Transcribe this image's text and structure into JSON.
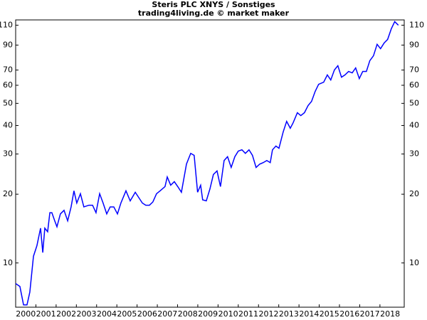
{
  "chart_data": {
    "type": "line",
    "title": "Steris PLC XNYS / Sonstiges",
    "subtitle": "trading4living.de © market maker",
    "x": [
      2000.0,
      2000.21,
      2000.39,
      2000.56,
      2000.7,
      2000.88,
      2001.05,
      2001.23,
      2001.34,
      2001.44,
      2001.58,
      2001.69,
      2001.79,
      2001.93,
      2002.04,
      2002.21,
      2002.39,
      2002.57,
      2002.74,
      2002.88,
      2003.02,
      2003.2,
      2003.37,
      2003.62,
      2003.8,
      2003.97,
      2004.15,
      2004.32,
      2004.5,
      2004.67,
      2004.85,
      2005.03,
      2005.2,
      2005.45,
      2005.66,
      2005.91,
      2006.26,
      2006.43,
      2006.61,
      2006.78,
      2006.96,
      2007.14,
      2007.38,
      2007.49,
      2007.66,
      2007.84,
      2008.01,
      2008.19,
      2008.44,
      2008.65,
      2008.82,
      2008.99,
      2009.14,
      2009.24,
      2009.42,
      2009.6,
      2009.77,
      2009.95,
      2010.12,
      2010.3,
      2010.47,
      2010.65,
      2010.83,
      2011.0,
      2011.18,
      2011.35,
      2011.53,
      2011.7,
      2011.88,
      2012.06,
      2012.23,
      2012.41,
      2012.58,
      2012.69,
      2012.86,
      2013.01,
      2013.22,
      2013.39,
      2013.57,
      2013.71,
      2013.92,
      2014.09,
      2014.27,
      2014.45,
      2014.62,
      2014.8,
      2014.97,
      2015.22,
      2015.4,
      2015.57,
      2015.75,
      2015.92,
      2016.1,
      2016.27,
      2016.45,
      2016.63,
      2016.8,
      2016.98,
      2017.15,
      2017.33,
      2017.5,
      2017.68,
      2017.86,
      2018.03,
      2018.21,
      2018.38,
      2018.56,
      2018.73,
      2018.91
    ],
    "values": [
      8.12,
      7.89,
      6.55,
      6.55,
      7.45,
      10.7,
      11.9,
      14.2,
      11.1,
      14.2,
      13.7,
      16.6,
      16.6,
      15.3,
      14.4,
      16.4,
      17.0,
      15.3,
      17.6,
      20.7,
      18.3,
      20.1,
      17.6,
      17.9,
      17.9,
      16.6,
      20.1,
      18.3,
      16.4,
      17.6,
      17.6,
      16.4,
      18.3,
      20.7,
      18.7,
      20.4,
      18.3,
      17.9,
      17.9,
      18.5,
      20.1,
      20.7,
      21.6,
      23.8,
      21.9,
      22.7,
      21.6,
      20.4,
      27.1,
      30.2,
      29.6,
      20.4,
      21.9,
      18.9,
      18.7,
      21.1,
      24.4,
      25.3,
      21.6,
      28.1,
      29.2,
      26.2,
      29.2,
      30.9,
      31.3,
      30.2,
      31.3,
      29.6,
      26.2,
      27.1,
      27.5,
      28.1,
      27.5,
      31.3,
      32.5,
      31.8,
      37.5,
      41.7,
      38.9,
      41.1,
      45.5,
      44.2,
      45.5,
      48.9,
      51.0,
      56.4,
      60.6,
      61.9,
      66.6,
      63.3,
      70.0,
      73.1,
      65.1,
      66.6,
      69.0,
      68.0,
      71.5,
      64.2,
      69.0,
      69.0,
      76.9,
      80.8,
      90.7,
      86.8,
      92.0,
      95.3,
      106,
      114,
      110
    ],
    "color": "#0000ff",
    "log_y": true,
    "xlim": [
      2000,
      2019.2
    ],
    "xticks": [
      2000,
      2001,
      2002,
      2003,
      2004,
      2005,
      2006,
      2007,
      2008,
      2009,
      2010,
      2011,
      2012,
      2013,
      2014,
      2015,
      2016,
      2017,
      2018
    ],
    "ylim": [
      6.4,
      116
    ],
    "yticks": [
      10,
      20,
      30,
      40,
      50,
      60,
      70,
      90,
      110
    ]
  }
}
